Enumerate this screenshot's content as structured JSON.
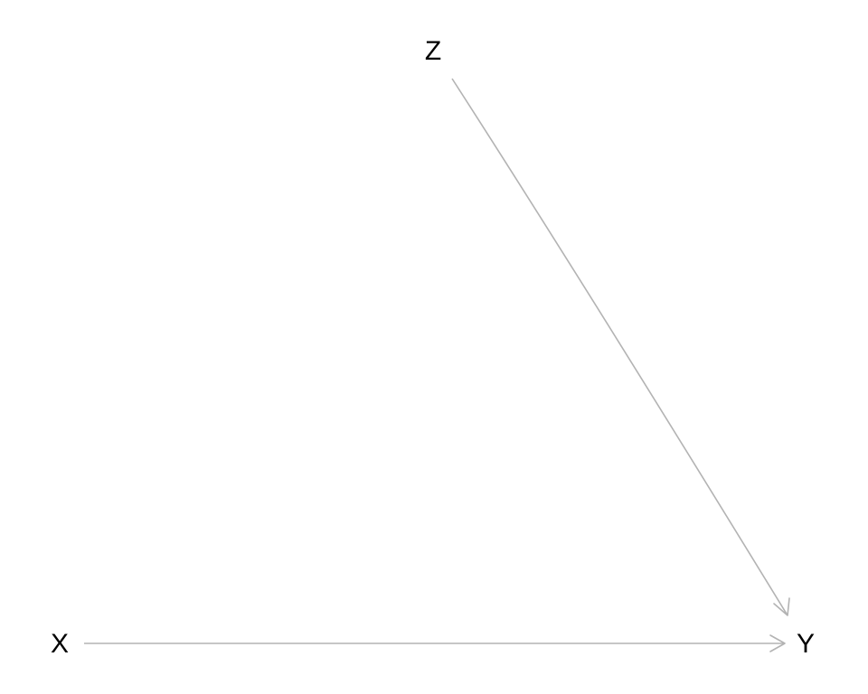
{
  "diagram": {
    "type": "directed-acyclic-graph",
    "nodes": [
      {
        "id": "Z",
        "label": "Z"
      },
      {
        "id": "X",
        "label": "X"
      },
      {
        "id": "Y",
        "label": "Y"
      }
    ],
    "edges": [
      {
        "from": "Z",
        "to": "Y"
      },
      {
        "from": "X",
        "to": "Y"
      }
    ],
    "colors": {
      "edge": "#b3b3b3",
      "label": "#000000",
      "background": "#ffffff"
    }
  }
}
